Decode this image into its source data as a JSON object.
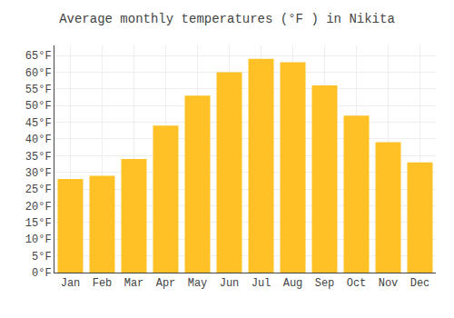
{
  "chart_data": {
    "type": "bar",
    "title": "Average monthly temperatures (°F ) in Nikita",
    "categories": [
      "Jan",
      "Feb",
      "Mar",
      "Apr",
      "May",
      "Jun",
      "Jul",
      "Aug",
      "Sep",
      "Oct",
      "Nov",
      "Dec"
    ],
    "values": [
      28,
      29,
      34,
      44,
      53,
      60,
      64,
      63,
      56,
      47,
      39,
      33
    ],
    "color": "#FFC125",
    "ylim": [
      0,
      68
    ],
    "yticks": [
      {
        "value": 0,
        "label": "0°F"
      },
      {
        "value": 5,
        "label": "5°F"
      },
      {
        "value": 10,
        "label": "10°F"
      },
      {
        "value": 15,
        "label": "15°F"
      },
      {
        "value": 20,
        "label": "20°F"
      },
      {
        "value": 25,
        "label": "25°F"
      },
      {
        "value": 30,
        "label": "30°F"
      },
      {
        "value": 35,
        "label": "35°F"
      },
      {
        "value": 40,
        "label": "40°F"
      },
      {
        "value": 45,
        "label": "45°F"
      },
      {
        "value": 50,
        "label": "50°F"
      },
      {
        "value": 55,
        "label": "55°F"
      },
      {
        "value": 60,
        "label": "60°F"
      },
      {
        "value": 65,
        "label": "65°F"
      }
    ],
    "grid": true
  }
}
